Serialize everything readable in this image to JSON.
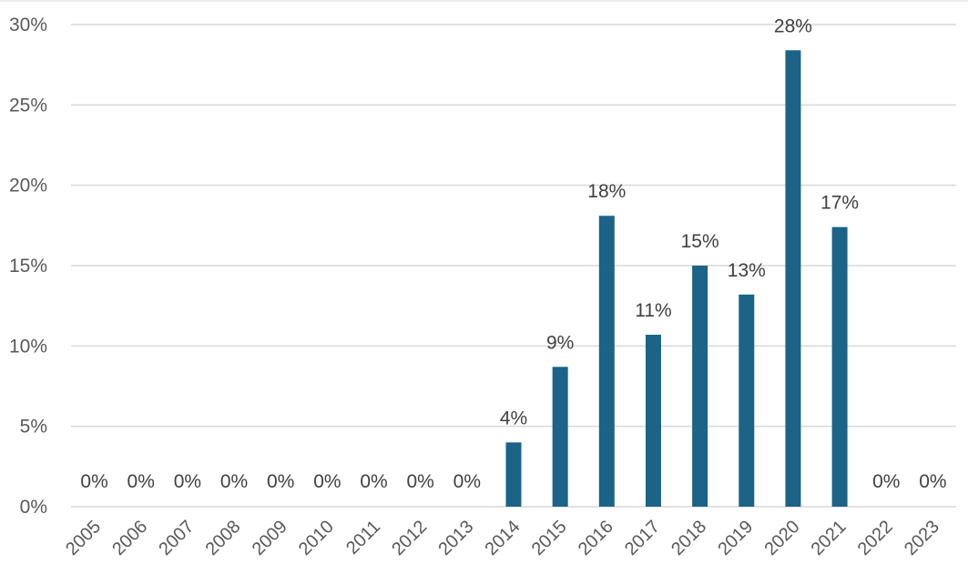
{
  "chart_data": {
    "type": "bar",
    "categories": [
      "2005",
      "2006",
      "2007",
      "2008",
      "2009",
      "2010",
      "2011",
      "2012",
      "2013",
      "2014",
      "2015",
      "2016",
      "2017",
      "2018",
      "2019",
      "2020",
      "2021",
      "2022",
      "2023"
    ],
    "values": [
      0,
      0,
      0,
      0,
      0,
      0,
      0,
      0,
      0,
      4,
      8.7,
      18.1,
      10.7,
      15.0,
      13.2,
      28.4,
      17.4,
      0,
      0
    ],
    "data_labels": [
      "0%",
      "0%",
      "0%",
      "0%",
      "0%",
      "0%",
      "0%",
      "0%",
      "0%",
      "4%",
      "9%",
      "18%",
      "11%",
      "15%",
      "13%",
      "28%",
      "17%",
      "0%",
      "0%"
    ],
    "title": "",
    "xlabel": "",
    "ylabel": "",
    "ylim": [
      0,
      30
    ],
    "yticks": [
      0,
      5,
      10,
      15,
      20,
      25,
      30
    ],
    "ytick_labels": [
      "0%",
      "5%",
      "10%",
      "15%",
      "20%",
      "25%",
      "30%"
    ],
    "grid": true,
    "legend": "none",
    "bar_color": "#1b6387",
    "grid_color": "#d9d9d9",
    "text_color": "#595959"
  }
}
